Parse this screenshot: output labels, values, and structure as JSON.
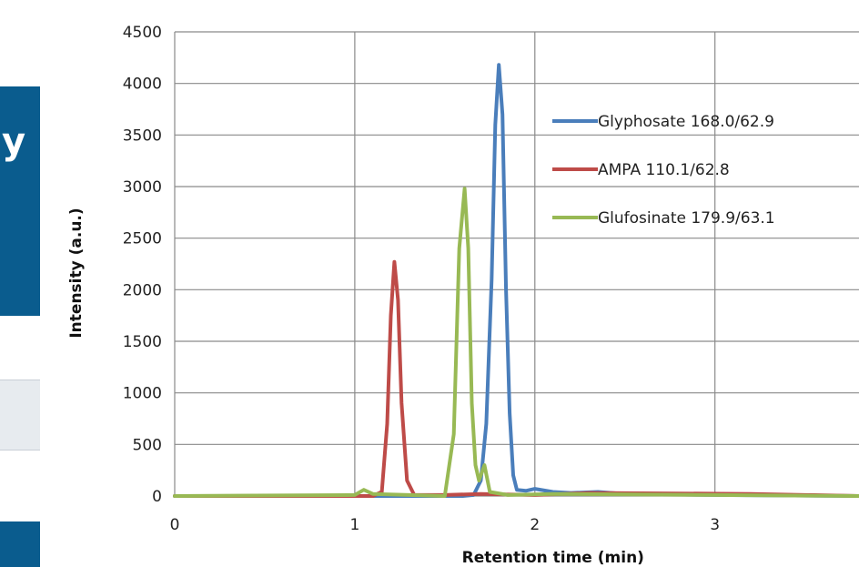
{
  "left_panel": {
    "header_text": "y",
    "header_color": "#0a5c8e",
    "alt_row_color": "#e7ebef"
  },
  "chart_data": {
    "type": "line",
    "title": "",
    "xlabel": "Retention time (min)",
    "ylabel": "Intensity (a.u.)",
    "xlim": [
      0,
      3.8
    ],
    "ylim": [
      0,
      4500
    ],
    "x_ticks": [
      0,
      1,
      2,
      3
    ],
    "y_ticks": [
      0,
      500,
      1000,
      1500,
      2000,
      2500,
      3000,
      3500,
      4000,
      4500
    ],
    "grid": true,
    "legend_position": "top-right",
    "series": [
      {
        "name": "Glyphosate 168.0/62.9",
        "color": "#4a7ebb",
        "x": [
          0,
          1.6,
          1.66,
          1.7,
          1.73,
          1.76,
          1.78,
          1.8,
          1.82,
          1.84,
          1.86,
          1.88,
          1.9,
          1.95,
          2.0,
          2.1,
          2.2,
          2.35,
          2.5,
          3.0,
          3.8
        ],
        "y": [
          0,
          0,
          10,
          150,
          700,
          2100,
          3600,
          4180,
          3700,
          2000,
          800,
          200,
          60,
          50,
          70,
          40,
          30,
          40,
          20,
          10,
          0
        ]
      },
      {
        "name": "AMPA 110.1/62.8",
        "color": "#be4b48",
        "x": [
          0,
          1.1,
          1.15,
          1.18,
          1.2,
          1.22,
          1.24,
          1.26,
          1.29,
          1.33,
          1.5,
          1.7,
          2.0,
          2.3,
          3.2,
          3.8
        ],
        "y": [
          0,
          0,
          40,
          700,
          1750,
          2270,
          1900,
          900,
          150,
          10,
          10,
          20,
          10,
          30,
          20,
          0
        ]
      },
      {
        "name": "Glufosinate 179.9/63.1",
        "color": "#98b954",
        "x": [
          0,
          1.0,
          1.05,
          1.1,
          1.5,
          1.55,
          1.58,
          1.61,
          1.63,
          1.65,
          1.67,
          1.69,
          1.72,
          1.75,
          1.85,
          2.1,
          3.0,
          3.8
        ],
        "y": [
          0,
          10,
          60,
          20,
          0,
          600,
          2400,
          2980,
          2400,
          900,
          300,
          150,
          300,
          40,
          10,
          20,
          10,
          0
        ]
      }
    ]
  }
}
